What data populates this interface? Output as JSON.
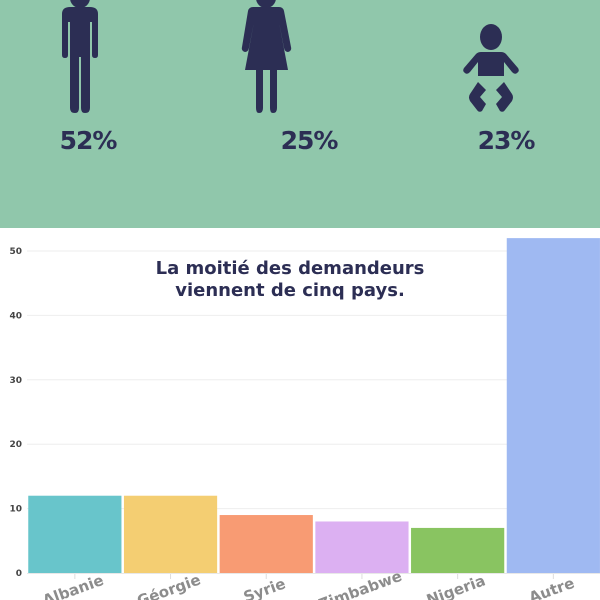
{
  "demographics": [
    {
      "icon": "man-icon",
      "label": "52%"
    },
    {
      "icon": "woman-icon",
      "label": "25%"
    },
    {
      "icon": "baby-icon",
      "label": "23%"
    }
  ],
  "colors": {
    "background_top": "#90c7ab",
    "icon": "#2c2e54"
  },
  "chart_data": {
    "type": "bar",
    "title": "La moitié des demandeurs viennent de cinq pays.",
    "title_lines": [
      "La moitié des demandeurs",
      "viennent de cinq pays."
    ],
    "categories": [
      "Albanie",
      "Géorgie",
      "Syrie",
      "Zimbabwe",
      "Nigeria",
      "Autre"
    ],
    "values": [
      12,
      12,
      9,
      8,
      7,
      52
    ],
    "colors": [
      "#68c5cb",
      "#f4ce72",
      "#f89b73",
      "#dcb0f2",
      "#89c461",
      "#9fb9f2"
    ],
    "ylim": [
      0,
      53
    ],
    "yticks": [
      0,
      10,
      20,
      30,
      40,
      50
    ],
    "grid": true,
    "xlabel": "",
    "ylabel": ""
  }
}
